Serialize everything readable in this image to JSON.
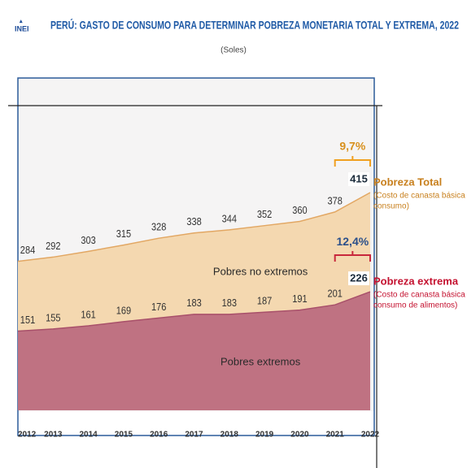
{
  "logo": "INEI",
  "chart_data": {
    "type": "area",
    "title": "PERÚ: GASTO DE CONSUMO PARA DETERMINAR POBREZA MONETARIA TOTAL Y EXTREMA, 2022",
    "subtitle": "(Soles)",
    "categories": [
      "2012",
      "2013",
      "2014",
      "2015",
      "2016",
      "2017",
      "2018",
      "2019",
      "2020",
      "2021",
      "2022"
    ],
    "series": [
      {
        "name": "Pobreza Total",
        "description": [
          "(Costo de canasta básica de",
          "consumo)"
        ],
        "color": "#e2a763",
        "fill": "#f4d8b0",
        "label_color": "#c8801e",
        "values": [
          284,
          292,
          303,
          315,
          328,
          338,
          344,
          352,
          360,
          378,
          415
        ],
        "change": "9,7%",
        "region": "Pobres no extremos"
      },
      {
        "name": "Pobreza extrema",
        "description": [
          "(Costo de canasta básica de",
          "consumo de alimentos)"
        ],
        "color": "#a8506a",
        "fill": "#bf7282",
        "label_color": "#c41230",
        "values": [
          151,
          155,
          161,
          169,
          176,
          183,
          183,
          187,
          191,
          201,
          226
        ],
        "change": "12,4%",
        "region": "Pobres extremos"
      }
    ]
  }
}
